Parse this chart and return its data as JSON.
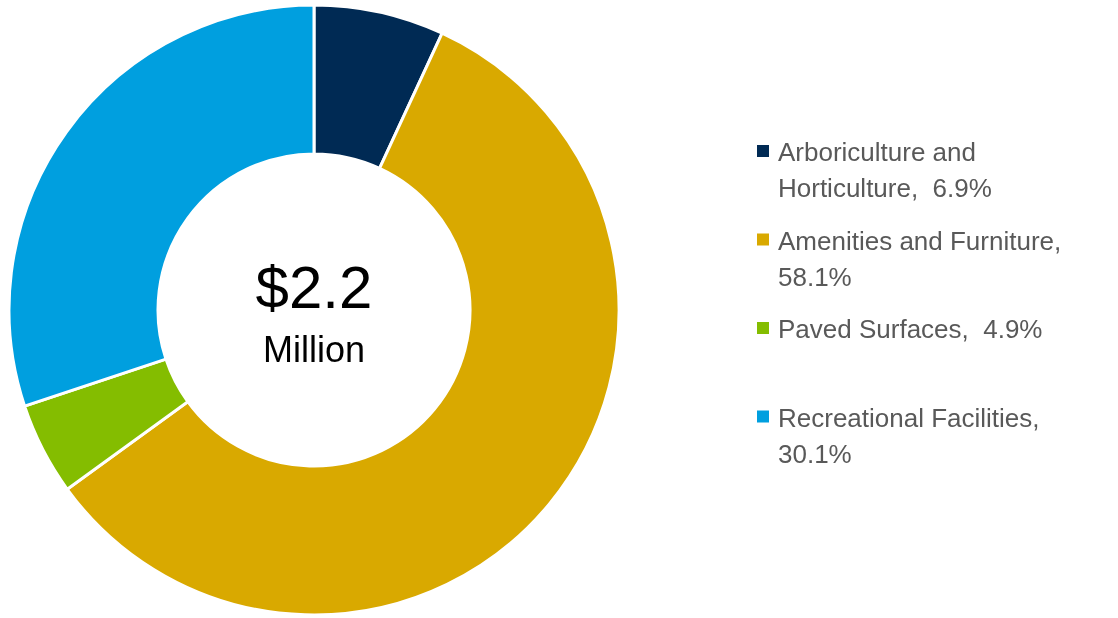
{
  "chart_data": {
    "type": "donut",
    "categories": [
      "Arboriculture and Horticulture,  6.9%",
      "Amenities and Furniture, 58.1%",
      "Paved Surfaces,  4.9%",
      "Recreational Facilities, 30.1%"
    ],
    "values": [
      6.9,
      58.1,
      4.9,
      30.1
    ],
    "colors": [
      "#002a54",
      "#d9a900",
      "#84bd00",
      "#009fdf"
    ],
    "annotations": [
      "$2.2",
      "Million"
    ],
    "legend": "right"
  }
}
